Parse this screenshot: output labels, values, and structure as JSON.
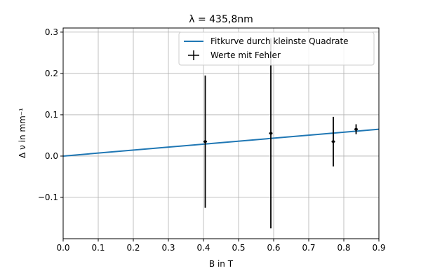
{
  "chart_data": {
    "type": "scatter",
    "title": "λ = 435,8nm",
    "xlabel": "B in T",
    "ylabel": "Δ ν in mm⁻¹",
    "xlim": [
      0.0,
      0.9
    ],
    "ylim": [
      -0.2,
      0.31
    ],
    "xticks": [
      0.0,
      0.1,
      0.2,
      0.3,
      0.4,
      0.5,
      0.6,
      0.7,
      0.8,
      0.9
    ],
    "xtick_labels": [
      "0.0",
      "0.1",
      "0.2",
      "0.3",
      "0.4",
      "0.5",
      "0.6",
      "0.7",
      "0.8",
      "0.9"
    ],
    "yticks": [
      -0.1,
      0.0,
      0.1,
      0.2,
      0.3
    ],
    "ytick_labels": [
      "−0.1",
      "0.0",
      "0.1",
      "0.2",
      "0.3"
    ],
    "grid": true,
    "legend_position": "top-right",
    "series": [
      {
        "name": "Fitkurve durch kleinste Quadrate",
        "kind": "line",
        "color": "#1f77b4",
        "x": [
          0.0,
          0.9
        ],
        "y": [
          0.0,
          0.065
        ]
      },
      {
        "name": "Werte mit Fehler",
        "kind": "errorbar",
        "color": "#000000",
        "points": [
          {
            "x": 0.405,
            "y": 0.035,
            "yerr": 0.16,
            "xerr": 0.005
          },
          {
            "x": 0.592,
            "y": 0.055,
            "yerr": 0.23,
            "xerr": 0.005
          },
          {
            "x": 0.77,
            "y": 0.035,
            "yerr": 0.06,
            "xerr": 0.005
          },
          {
            "x": 0.835,
            "y": 0.065,
            "yerr": 0.012,
            "xerr": 0.005
          }
        ]
      }
    ]
  }
}
